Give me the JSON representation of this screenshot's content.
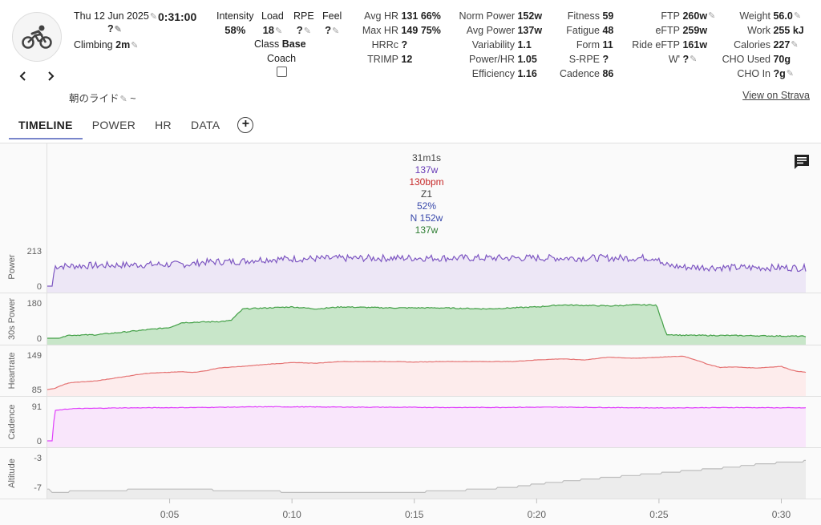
{
  "activity": {
    "date": "Thu 12 Jun 2025",
    "duration": "0:31:00",
    "title_placeholder": "?",
    "climbing_label": "Climbing",
    "climbing_value": "2m",
    "name": "朝のライド",
    "name_suffix": "~",
    "view_on_strava": "View on Strava",
    "sport_icon": "cycling-icon"
  },
  "summary": {
    "intensity_label": "Intensity",
    "intensity_value": "58%",
    "load_label": "Load",
    "load_value": "18",
    "rpe_label": "RPE",
    "rpe_value": "?",
    "feel_label": "Feel",
    "feel_value": "?",
    "class_label": "Class",
    "class_value": "Base",
    "coach_label": "Coach"
  },
  "hr_stats": [
    {
      "label": "Avg HR",
      "value": "131",
      "extra": "66%"
    },
    {
      "label": "Max HR",
      "value": "149",
      "extra": "75%"
    },
    {
      "label": "HRRc",
      "value": "?",
      "extra": ""
    },
    {
      "label": "TRIMP",
      "value": "12",
      "extra": ""
    }
  ],
  "power_stats": [
    {
      "label": "Norm Power",
      "value": "152w"
    },
    {
      "label": "Avg Power",
      "value": "137w"
    },
    {
      "label": "Variability",
      "value": "1.1"
    },
    {
      "label": "Power/HR",
      "value": "1.05"
    },
    {
      "label": "Efficiency",
      "value": "1.16"
    }
  ],
  "fitness_stats": [
    {
      "label": "Fitness",
      "value": "59"
    },
    {
      "label": "Fatigue",
      "value": "48"
    },
    {
      "label": "Form",
      "value": "11"
    },
    {
      "label": "S-RPE",
      "value": "?"
    },
    {
      "label": "Cadence",
      "value": "86"
    }
  ],
  "ftp_stats": [
    {
      "label": "FTP",
      "value": "260w"
    },
    {
      "label": "eFTP",
      "value": "259w"
    },
    {
      "label": "Ride eFTP",
      "value": "161w"
    },
    {
      "label": "W'",
      "value": "?"
    }
  ],
  "body_stats": [
    {
      "label": "Weight",
      "value": "56.0"
    },
    {
      "label": "Work",
      "value": "255 kJ"
    },
    {
      "label": "Calories",
      "value": "227"
    },
    {
      "label": "CHO Used",
      "value": "70g"
    },
    {
      "label": "CHO In",
      "value": "?g"
    }
  ],
  "tabs": [
    "TIMELINE",
    "POWER",
    "HR",
    "DATA"
  ],
  "active_tab": "TIMELINE",
  "tooltip": {
    "time": "31m1s",
    "power": "137w",
    "hr": "130bpm",
    "zone": "Z1",
    "pct": "52%",
    "np": "N 152w",
    "p30": "137w"
  },
  "colors": {
    "power": "#7e57c2",
    "power_fill": "#ede7f6",
    "power30": "#43a047",
    "power30_fill": "#c8e6c9",
    "hr": "#e57373",
    "hr_fill": "#fdecec",
    "cadence": "#e040fb",
    "cadence_fill": "#f9e6fb",
    "altitude": "#bdbdbd",
    "altitude_fill": "#ececec",
    "tab_underline": "#7986cb"
  },
  "chart_data": {
    "type": "line",
    "x_ticks": [
      "0:05",
      "0:10",
      "0:15",
      "0:20",
      "0:25",
      "0:30"
    ],
    "x_tick_minutes": [
      5,
      10,
      15,
      20,
      25,
      30
    ],
    "x_range_minutes": [
      0,
      31
    ],
    "series": [
      {
        "name": "Power",
        "unit": "w",
        "ymin_label": "0",
        "ymax_label": "213",
        "ylim": [
          0,
          213
        ],
        "points": [
          [
            0,
            0
          ],
          [
            0.2,
            0
          ],
          [
            0.3,
            120
          ],
          [
            2,
            125
          ],
          [
            4,
            130
          ],
          [
            5.5,
            132
          ],
          [
            6,
            135
          ],
          [
            6.3,
            145
          ],
          [
            8,
            150
          ],
          [
            8.5,
            160
          ],
          [
            10,
            165
          ],
          [
            12,
            168
          ],
          [
            15,
            170
          ],
          [
            18,
            170
          ],
          [
            20,
            170
          ],
          [
            22,
            170
          ],
          [
            24,
            170
          ],
          [
            25,
            172
          ],
          [
            25.1,
            130
          ],
          [
            26,
            115
          ],
          [
            28,
            112
          ],
          [
            30,
            112
          ],
          [
            31,
            110
          ]
        ]
      },
      {
        "name": "30s Power",
        "unit": "w",
        "ymin_label": "0",
        "ymax_label": "180",
        "ylim": [
          0,
          180
        ],
        "points": [
          [
            0,
            0
          ],
          [
            0.5,
            0
          ],
          [
            0.8,
            15
          ],
          [
            2,
            18
          ],
          [
            3,
            30
          ],
          [
            5,
            55
          ],
          [
            5.5,
            80
          ],
          [
            7,
            85
          ],
          [
            7.5,
            90
          ],
          [
            8,
            150
          ],
          [
            9,
            155
          ],
          [
            10,
            160
          ],
          [
            11,
            150
          ],
          [
            12,
            160
          ],
          [
            14,
            155
          ],
          [
            16,
            155
          ],
          [
            18,
            150
          ],
          [
            20,
            160
          ],
          [
            21,
            170
          ],
          [
            23,
            165
          ],
          [
            24,
            170
          ],
          [
            24.9,
            170
          ],
          [
            25,
            130
          ],
          [
            25.3,
            20
          ],
          [
            26,
            15
          ],
          [
            28,
            14
          ],
          [
            31,
            10
          ]
        ]
      },
      {
        "name": "Heartrate",
        "unit": "bpm",
        "ymin_label": "85",
        "ymax_label": "149",
        "ylim": [
          85,
          149
        ],
        "points": [
          [
            0,
            85
          ],
          [
            0.3,
            87
          ],
          [
            0.7,
            95
          ],
          [
            1,
            98
          ],
          [
            2,
            101
          ],
          [
            3,
            108
          ],
          [
            4,
            115
          ],
          [
            5,
            117
          ],
          [
            5.5,
            118
          ],
          [
            6,
            117
          ],
          [
            6.5,
            120
          ],
          [
            7,
            125
          ],
          [
            8,
            128
          ],
          [
            9,
            132
          ],
          [
            10,
            135
          ],
          [
            11,
            134
          ],
          [
            12,
            137
          ],
          [
            14,
            137
          ],
          [
            15,
            136
          ],
          [
            16,
            137
          ],
          [
            18,
            137
          ],
          [
            19,
            137
          ],
          [
            20,
            140
          ],
          [
            21,
            142
          ],
          [
            22,
            140
          ],
          [
            22.5,
            143
          ],
          [
            23,
            145
          ],
          [
            24,
            143
          ],
          [
            25,
            145
          ],
          [
            26,
            147
          ],
          [
            26.5,
            140
          ],
          [
            27,
            132
          ],
          [
            27.5,
            126
          ],
          [
            28,
            127
          ],
          [
            29,
            125
          ],
          [
            30,
            128
          ],
          [
            30.5,
            120
          ],
          [
            31,
            117
          ]
        ]
      },
      {
        "name": "Cadence",
        "unit": "rpm",
        "ymin_label": "0",
        "ymax_label": "91",
        "ylim": [
          0,
          91
        ],
        "points": [
          [
            0,
            0
          ],
          [
            0.2,
            0
          ],
          [
            0.3,
            80
          ],
          [
            1,
            85
          ],
          [
            3,
            87
          ],
          [
            6,
            88
          ],
          [
            9,
            90
          ],
          [
            13,
            89
          ],
          [
            17,
            88
          ],
          [
            21,
            89
          ],
          [
            25,
            87
          ],
          [
            28,
            88
          ],
          [
            31,
            87
          ]
        ]
      },
      {
        "name": "Altitude",
        "unit": "m",
        "ymin_label": "-7",
        "ymax_label": "-3",
        "ylim": [
          -7.7,
          -2.6
        ],
        "points": [
          [
            0,
            -7.2
          ],
          [
            0.2,
            -7.7
          ],
          [
            2,
            -7.5
          ],
          [
            4,
            -7.3
          ],
          [
            6,
            -7.3
          ],
          [
            7,
            -7.4
          ],
          [
            9,
            -7.6
          ],
          [
            11,
            -7.7
          ],
          [
            14,
            -7.7
          ],
          [
            16,
            -7.6
          ],
          [
            18,
            -7.2
          ],
          [
            19,
            -7.0
          ],
          [
            20,
            -6.5
          ],
          [
            22,
            -5.8
          ],
          [
            24,
            -5.2
          ],
          [
            26,
            -4.6
          ],
          [
            28,
            -4.0
          ],
          [
            29,
            -3.6
          ],
          [
            30,
            -3.3
          ],
          [
            31,
            -3.1
          ]
        ]
      }
    ]
  }
}
